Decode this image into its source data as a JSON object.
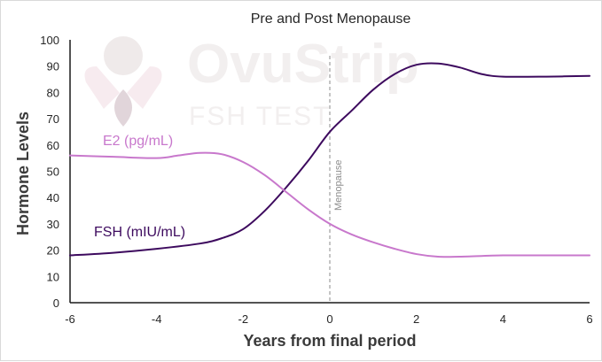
{
  "chart_data": {
    "type": "line",
    "title": "Pre and Post Menopause",
    "xlabel": "Years from final period",
    "ylabel": "Hormone Levels",
    "xlim": [
      -6,
      6
    ],
    "ylim": [
      0,
      100
    ],
    "x_ticks": [
      "-6",
      "-4",
      "-2",
      "0",
      "2",
      "4",
      "6"
    ],
    "y_ticks": [
      "0",
      "10",
      "20",
      "30",
      "40",
      "50",
      "60",
      "70",
      "80",
      "90",
      "100"
    ],
    "grid": false,
    "series": [
      {
        "name": "FSH (mIU/mL)",
        "color": "#3d0a5e",
        "x": [
          -6,
          -5,
          -4,
          -3,
          -2.5,
          -2,
          -1.5,
          -1,
          -0.5,
          0,
          0.5,
          1,
          1.5,
          2,
          2.5,
          3,
          3.5,
          4,
          5,
          6
        ],
        "y": [
          18,
          19,
          20.5,
          22.5,
          24.5,
          28,
          35,
          44,
          54,
          65,
          73,
          81,
          87,
          90.5,
          91,
          89.5,
          87,
          86,
          86,
          86.3
        ]
      },
      {
        "name": "E2 (pg/mL)",
        "color": "#c878cc",
        "x": [
          -6,
          -5,
          -4,
          -3.5,
          -3,
          -2.5,
          -2,
          -1.5,
          -1,
          -0.5,
          0,
          0.5,
          1,
          1.5,
          2,
          2.5,
          3,
          4,
          5,
          6
        ],
        "y": [
          56,
          55.5,
          55,
          56,
          57,
          56.5,
          53.5,
          48.5,
          42,
          35.5,
          30,
          26,
          23,
          20.5,
          18.5,
          17.5,
          17.5,
          18,
          18,
          18
        ]
      }
    ],
    "annotations": {
      "vline_x": 0,
      "vline_label": "Menopause"
    }
  },
  "watermark": {
    "brand": "OvuStrip",
    "subtitle": "FSH TEST"
  }
}
